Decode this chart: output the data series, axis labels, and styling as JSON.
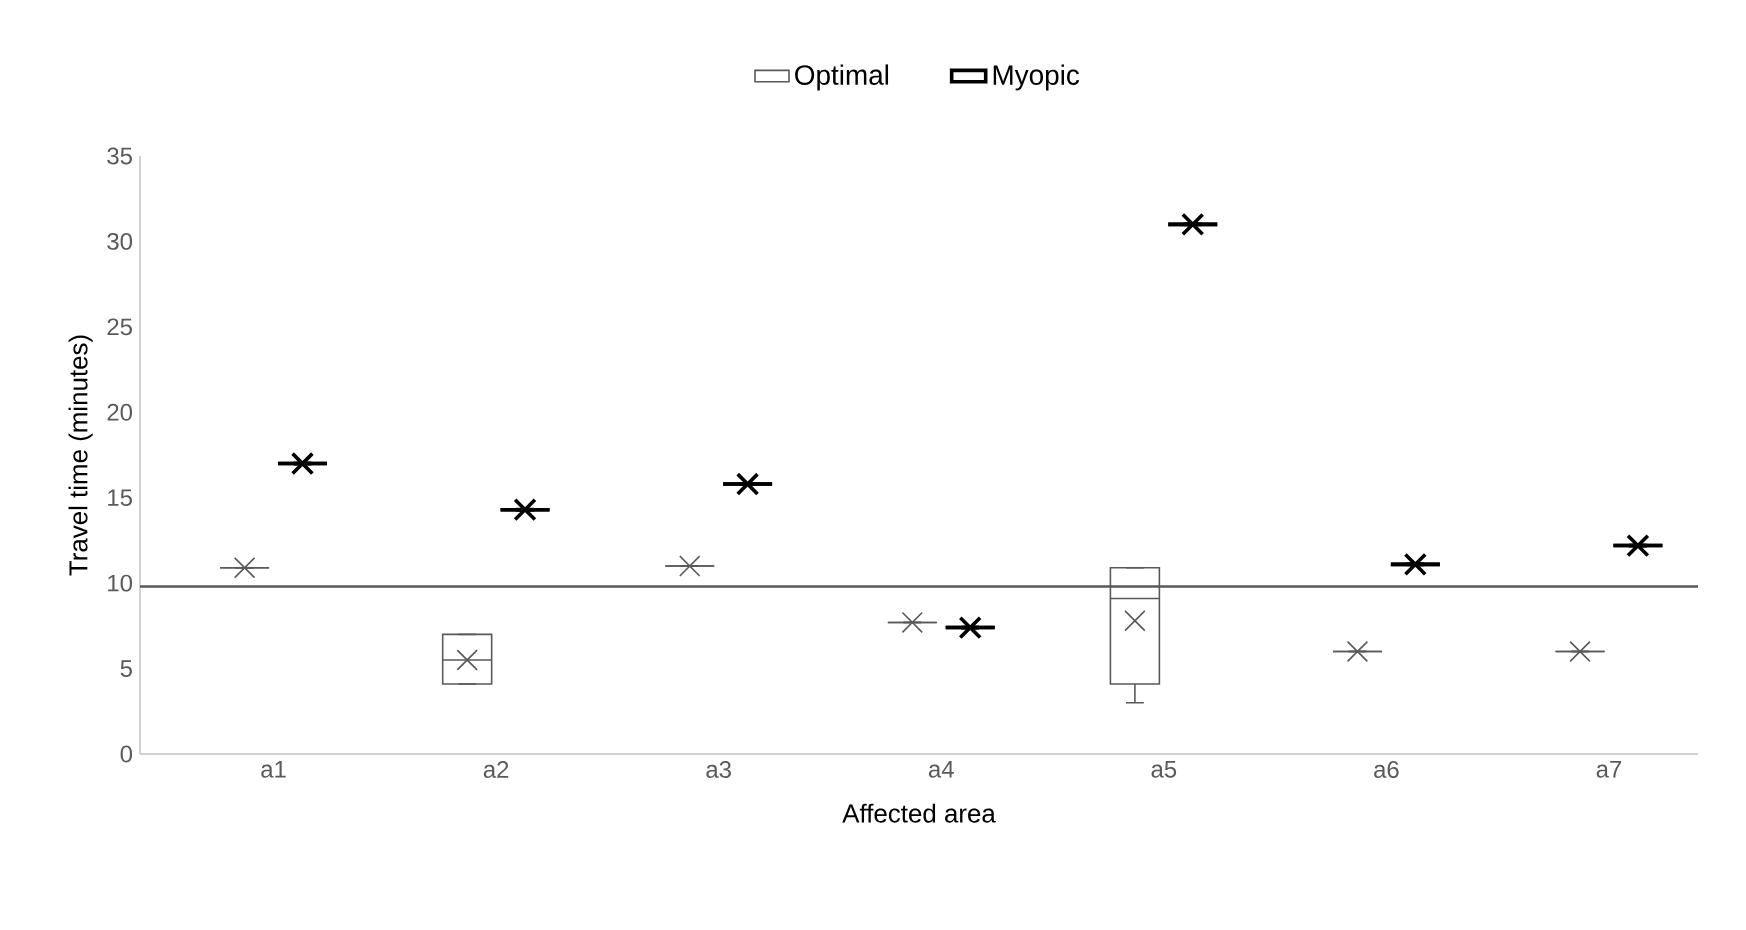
{
  "chart_data": {
    "type": "box",
    "xlabel": "Affected area",
    "ylabel": "Travel time (minutes)",
    "categories": [
      "a1",
      "a2",
      "a3",
      "a4",
      "a5",
      "a6",
      "a7"
    ],
    "ylim": [
      0,
      35
    ],
    "yticks": [
      0,
      5,
      10,
      15,
      20,
      25,
      30,
      35
    ],
    "legend": "top",
    "grid": false,
    "marker": "cross",
    "ref_lines": [
      {
        "axis": "y",
        "value": 9.8,
        "color": "#595959"
      }
    ],
    "series": [
      {
        "name": "Optimal",
        "color": "#595959",
        "boxes": [
          {
            "low": 10.9,
            "q1": 10.9,
            "median": 10.9,
            "q3": 10.9,
            "high": 10.9,
            "mean": 10.9
          },
          {
            "low": 4.1,
            "q1": 4.1,
            "median": 5.5,
            "q3": 7.0,
            "high": 7.0,
            "mean": 5.5
          },
          {
            "low": 11.0,
            "q1": 11.0,
            "median": 11.0,
            "q3": 11.0,
            "high": 11.0,
            "mean": 11.0
          },
          {
            "low": 7.7,
            "q1": 7.7,
            "median": 7.7,
            "q3": 7.7,
            "high": 7.7,
            "mean": 7.7
          },
          {
            "low": 3.0,
            "q1": 4.1,
            "median": 9.1,
            "q3": 10.9,
            "high": 10.9,
            "mean": 7.8
          },
          {
            "low": 6.0,
            "q1": 6.0,
            "median": 6.0,
            "q3": 6.0,
            "high": 6.0,
            "mean": 6.0
          },
          {
            "low": 6.0,
            "q1": 6.0,
            "median": 6.0,
            "q3": 6.0,
            "high": 6.0,
            "mean": 6.0
          }
        ]
      },
      {
        "name": "Myopic",
        "color": "#000000",
        "boxes": [
          {
            "low": 17.0,
            "q1": 17.0,
            "median": 17.0,
            "q3": 17.0,
            "high": 17.0,
            "mean": 17.0
          },
          {
            "low": 14.3,
            "q1": 14.3,
            "median": 14.3,
            "q3": 14.3,
            "high": 14.3,
            "mean": 14.3
          },
          {
            "low": 15.8,
            "q1": 15.8,
            "median": 15.8,
            "q3": 15.8,
            "high": 15.8,
            "mean": 15.8
          },
          {
            "low": 7.4,
            "q1": 7.4,
            "median": 7.4,
            "q3": 7.4,
            "high": 7.4,
            "mean": 7.4
          },
          {
            "low": 31.0,
            "q1": 31.0,
            "median": 31.0,
            "q3": 31.0,
            "high": 31.0,
            "mean": 31.0
          },
          {
            "low": 11.1,
            "q1": 11.1,
            "median": 11.1,
            "q3": 11.1,
            "high": 11.1,
            "mean": 11.1
          },
          {
            "low": 12.2,
            "q1": 12.2,
            "median": 12.2,
            "q3": 12.2,
            "high": 12.2,
            "mean": 12.2
          }
        ]
      }
    ]
  }
}
